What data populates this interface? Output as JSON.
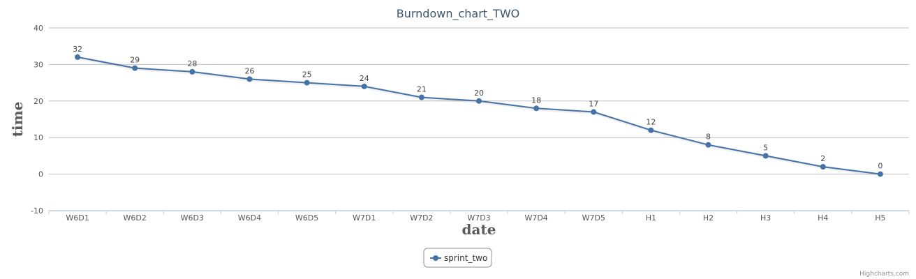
{
  "chart_data": {
    "type": "line",
    "title": "Burndown_chart_TWO",
    "xlabel": "date",
    "ylabel": "time",
    "categories": [
      "W6D1",
      "W6D2",
      "W6D3",
      "W6D4",
      "W6D5",
      "W7D1",
      "W7D2",
      "W7D3",
      "W7D4",
      "W7D5",
      "H1",
      "H2",
      "H3",
      "H4",
      "H5"
    ],
    "series": [
      {
        "name": "sprint_two",
        "color": "#4572a7",
        "values": [
          32,
          29,
          28,
          26,
          25,
          24,
          21,
          20,
          18,
          17,
          12,
          8,
          5,
          2,
          0
        ]
      }
    ],
    "ylim": [
      -10,
      40
    ],
    "yticks": [
      -10,
      0,
      10,
      20,
      30,
      40
    ],
    "grid": true,
    "data_labels": true,
    "legend_position": "bottom-center"
  },
  "credits": "Highcharts.com"
}
